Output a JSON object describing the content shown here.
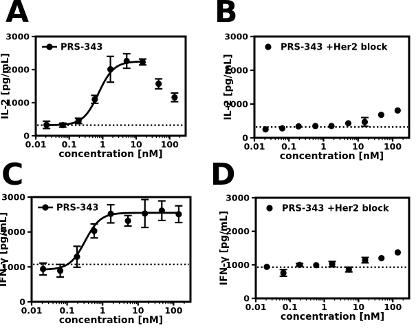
{
  "figure": {
    "background_color": "#ffffff",
    "ink_color": "#000000",
    "description": "Four-panel dose-response figure for PRS-343 bispecific: IL-2 and IFN-γ secretion vs concentration, with and without Her2 block"
  },
  "chart_data": [
    {
      "panel_letter": "A",
      "type": "scatter",
      "x_scale": "log",
      "xlabel": "concentration [nM]",
      "ylabel": "IL-2 [pg/mL]",
      "legend": "PRS-343",
      "legend_marker": "line-dot",
      "legend_position": "top-left-inside",
      "xlim": [
        0.01,
        300
      ],
      "ylim": [
        0,
        3000
      ],
      "xtick_values": [
        0.01,
        0.1,
        1,
        10,
        100
      ],
      "xtick_labels": [
        "0.01",
        "0.1",
        "1",
        "10",
        "100"
      ],
      "ytick_values": [
        0,
        1000,
        2000,
        3000
      ],
      "ytick_labels": [
        "0",
        "1000",
        "2000",
        "3000"
      ],
      "baseline_dotted_y": 320,
      "x": [
        0.021,
        0.064,
        0.19,
        0.58,
        1.7,
        5.2,
        15.6,
        46.7,
        140
      ],
      "y": [
        330,
        320,
        450,
        1100,
        2010,
        2260,
        2230,
        1570,
        1160
      ],
      "yerr": [
        110,
        60,
        80,
        120,
        390,
        220,
        90,
        150,
        130
      ],
      "fit": {
        "model": "4PL sigmoid",
        "bottom": 320,
        "top": 2250,
        "ec50": 0.75,
        "hill": 1.9,
        "x_range": [
          0.021,
          15.6
        ]
      }
    },
    {
      "panel_letter": "B",
      "type": "scatter",
      "x_scale": "log",
      "xlabel": "concentration [nM]",
      "ylabel": "IL-2 [pg/mL]",
      "legend": "PRS-343 +Her2 block",
      "legend_marker": "dot",
      "legend_position": "top-left-inside",
      "xlim": [
        0.01,
        300
      ],
      "ylim": [
        0,
        3000
      ],
      "xtick_values": [
        0.01,
        0.1,
        1,
        10,
        100
      ],
      "xtick_labels": [
        "0.01",
        "0.1",
        "1",
        "10",
        "100"
      ],
      "ytick_values": [
        0,
        1000,
        2000,
        3000
      ],
      "ytick_labels": [
        "0",
        "1000",
        "2000",
        "3000"
      ],
      "baseline_dotted_y": 320,
      "x": [
        0.021,
        0.064,
        0.19,
        0.58,
        1.7,
        5.2,
        15.6,
        46.7,
        140
      ],
      "y": [
        250,
        280,
        340,
        350,
        350,
        430,
        470,
        680,
        810
      ],
      "yerr": [
        0,
        0,
        0,
        0,
        0,
        0,
        130,
        0,
        0
      ],
      "fit": null
    },
    {
      "panel_letter": "C",
      "type": "scatter",
      "x_scale": "log",
      "xlabel": "concentration [nM]",
      "ylabel": "IFN-γ [pg/mL]",
      "legend": "PRS-343",
      "legend_marker": "line-dot",
      "legend_position": "top-left-inside",
      "xlim": [
        0.01,
        300
      ],
      "ylim": [
        0,
        3000
      ],
      "xtick_values": [
        0.01,
        0.1,
        1,
        10,
        100
      ],
      "xtick_labels": [
        "0.01",
        "0.1",
        "1",
        "10",
        "100"
      ],
      "ytick_values": [
        0,
        1000,
        2000,
        3000
      ],
      "ytick_labels": [
        "0",
        "1000",
        "2000",
        "3000"
      ],
      "baseline_dotted_y": 1070,
      "x": [
        0.021,
        0.064,
        0.19,
        0.58,
        1.7,
        5.2,
        15.6,
        46.7,
        140
      ],
      "y": [
        940,
        890,
        1290,
        2030,
        2520,
        2320,
        2530,
        2610,
        2510
      ],
      "yerr": [
        170,
        180,
        300,
        200,
        260,
        150,
        400,
        280,
        240
      ],
      "fit": {
        "model": "4PL sigmoid",
        "bottom": 920,
        "top": 2550,
        "ec50": 0.32,
        "hill": 2.0,
        "x_range": [
          0.021,
          140
        ]
      }
    },
    {
      "panel_letter": "D",
      "type": "scatter",
      "x_scale": "log",
      "xlabel": "concentration [nM]",
      "ylabel": "IFN-γ [pg/mL]",
      "legend": "PRS-343 +Her2 block",
      "legend_marker": "dot",
      "legend_position": "top-left-inside",
      "xlim": [
        0.01,
        300
      ],
      "ylim": [
        0,
        3000
      ],
      "xtick_values": [
        0.01,
        0.1,
        1,
        10,
        100
      ],
      "xtick_labels": [
        "0.01",
        "0.1",
        "1",
        "10",
        "100"
      ],
      "ytick_values": [
        0,
        1000,
        2000,
        3000
      ],
      "ytick_labels": [
        "0",
        "1000",
        "2000",
        "3000"
      ],
      "baseline_dotted_y": 930,
      "x": [
        0.021,
        0.064,
        0.19,
        0.58,
        1.7,
        5.2,
        15.6,
        46.7,
        140
      ],
      "y": [
        940,
        760,
        1000,
        990,
        1020,
        860,
        1140,
        1200,
        1370
      ],
      "yerr": [
        0,
        100,
        40,
        0,
        80,
        70,
        80,
        0,
        0
      ],
      "fit": null
    }
  ]
}
